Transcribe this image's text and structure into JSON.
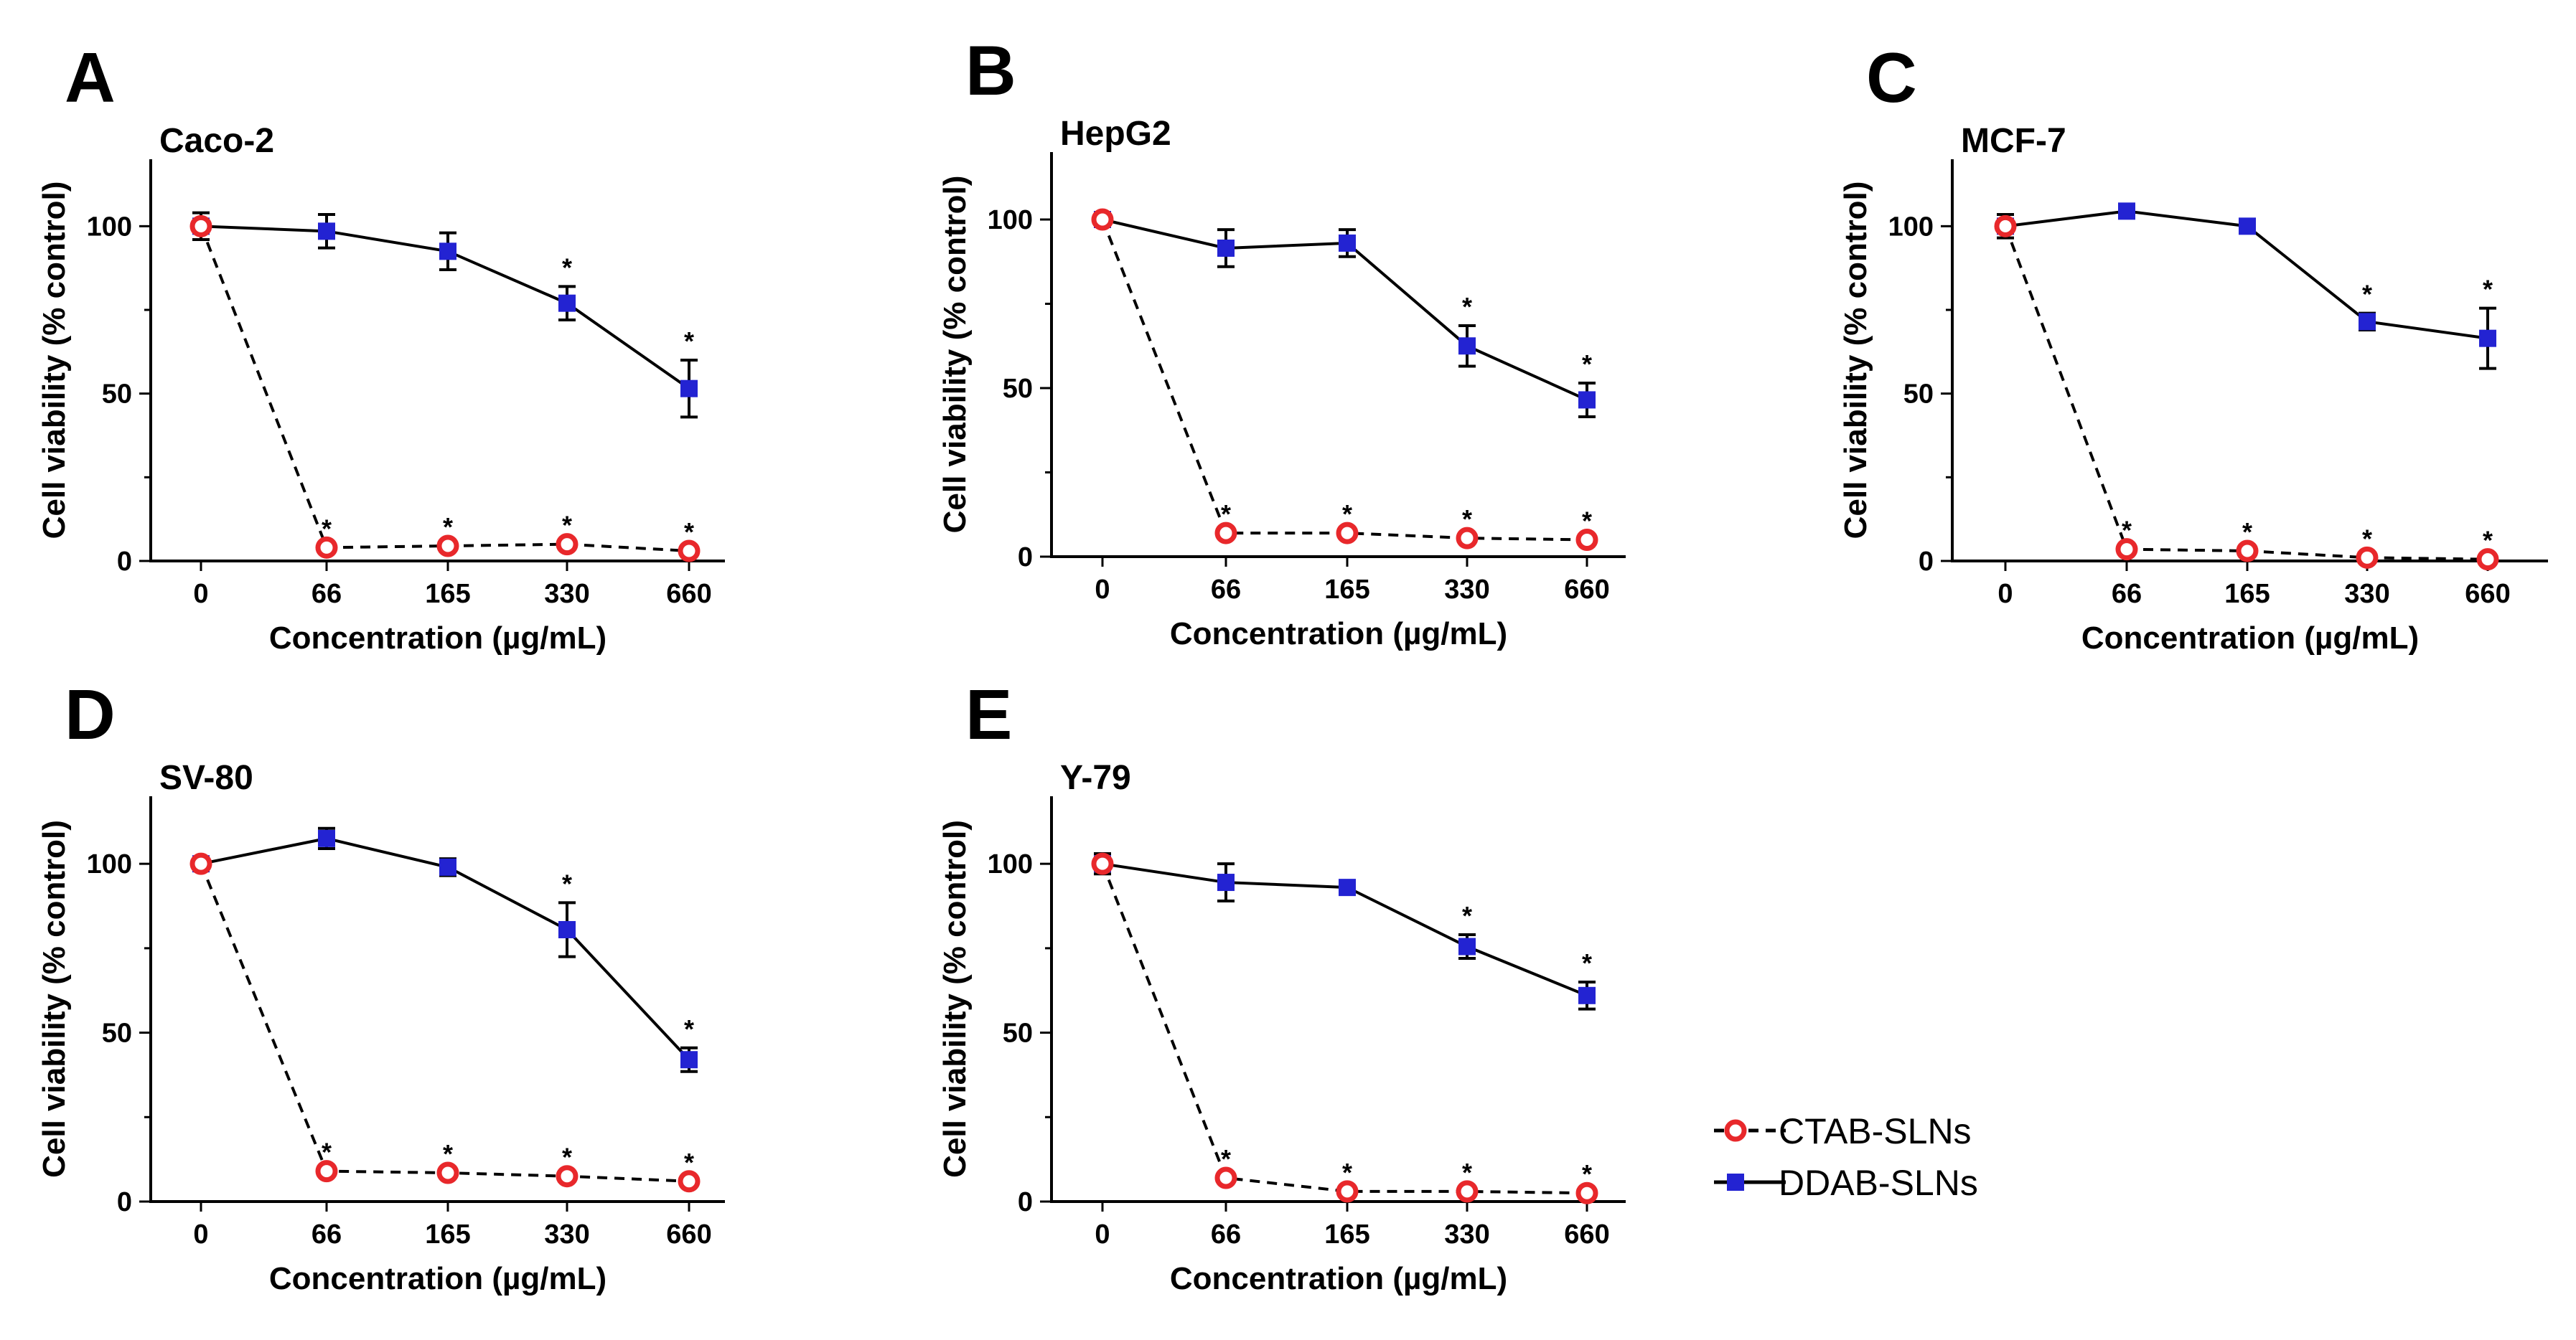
{
  "legend": {
    "ctab_label": "CTAB-SLNs",
    "ddab_label": "DDAB-SLNs"
  },
  "colors": {
    "ctab": "#e8282b",
    "ddab": "#2323d2",
    "line": "#000000"
  },
  "chart_data": [
    {
      "panel": "A",
      "title": "Caco-2",
      "type": "line",
      "categories": [
        "0",
        "66",
        "165",
        "330",
        "660"
      ],
      "xlabel": "Concentration  (µg/mL)",
      "ylabel": "Cell viability (% control)",
      "ylim": [
        0,
        120
      ],
      "yticks": [
        0,
        50,
        100
      ],
      "series": [
        {
          "name": "CTAB-SLNs",
          "values": [
            100,
            4,
            4.5,
            5,
            3
          ],
          "errors": [
            0,
            0,
            0,
            0,
            0
          ],
          "sig": [
            false,
            true,
            true,
            true,
            true
          ]
        },
        {
          "name": "DDAB-SLNs",
          "values": [
            100,
            98.5,
            92.5,
            77,
            51.5
          ],
          "errors": [
            4,
            5,
            5.5,
            5,
            8.5
          ],
          "sig": [
            false,
            false,
            false,
            true,
            true
          ]
        }
      ]
    },
    {
      "panel": "B",
      "title": "HepG2",
      "type": "line",
      "categories": [
        "0",
        "66",
        "165",
        "330",
        "660"
      ],
      "xlabel": "Concentration  (µg/mL)",
      "ylabel": "Cell viability (% control)",
      "ylim": [
        0,
        120
      ],
      "yticks": [
        0,
        50,
        100
      ],
      "series": [
        {
          "name": "CTAB-SLNs",
          "values": [
            100,
            7,
            7,
            5.5,
            5
          ],
          "errors": [
            0,
            0,
            0,
            0,
            0
          ],
          "sig": [
            false,
            true,
            true,
            true,
            true
          ]
        },
        {
          "name": "DDAB-SLNs",
          "values": [
            100,
            91.5,
            93,
            62.5,
            46.5
          ],
          "errors": [
            0,
            5.5,
            4,
            6,
            5
          ],
          "sig": [
            false,
            false,
            false,
            true,
            true
          ]
        }
      ]
    },
    {
      "panel": "C",
      "title": "MCF-7",
      "type": "line",
      "categories": [
        "0",
        "66",
        "165",
        "330",
        "660"
      ],
      "xlabel": "Concentration  (µg/mL)",
      "ylabel": "Cell viability (% control)",
      "ylim": [
        0,
        120
      ],
      "yticks": [
        0,
        50,
        100
      ],
      "series": [
        {
          "name": "CTAB-SLNs",
          "values": [
            100,
            3.5,
            3,
            1,
            0.5
          ],
          "errors": [
            0,
            0,
            0,
            0,
            0
          ],
          "sig": [
            false,
            true,
            true,
            true,
            true
          ]
        },
        {
          "name": "DDAB-SLNs",
          "values": [
            100,
            104.5,
            100,
            71.5,
            66.5
          ],
          "errors": [
            3.5,
            0,
            0,
            2.5,
            9
          ],
          "sig": [
            false,
            false,
            false,
            true,
            true
          ]
        }
      ]
    },
    {
      "panel": "D",
      "title": "SV-80",
      "type": "line",
      "categories": [
        "0",
        "66",
        "165",
        "330",
        "660"
      ],
      "xlabel": "Concentration  (µg/mL)",
      "ylabel": "Cell viability (% control)",
      "ylim": [
        0,
        120
      ],
      "yticks": [
        0,
        50,
        100
      ],
      "series": [
        {
          "name": "CTAB-SLNs",
          "values": [
            100,
            9,
            8.5,
            7.5,
            6
          ],
          "errors": [
            0,
            0,
            0,
            0,
            0
          ],
          "sig": [
            false,
            true,
            true,
            true,
            true
          ]
        },
        {
          "name": "DDAB-SLNs",
          "values": [
            100,
            107.5,
            99,
            80.5,
            42
          ],
          "errors": [
            0,
            3,
            2.5,
            8,
            3.5
          ],
          "sig": [
            false,
            false,
            false,
            true,
            true
          ]
        }
      ]
    },
    {
      "panel": "E",
      "title": "Y-79",
      "type": "line",
      "categories": [
        "0",
        "66",
        "165",
        "330",
        "660"
      ],
      "xlabel": "Concentration  (µg/mL)",
      "ylabel": "Cell viability (% control)",
      "ylim": [
        0,
        120
      ],
      "yticks": [
        0,
        50,
        100
      ],
      "series": [
        {
          "name": "CTAB-SLNs",
          "values": [
            100,
            7,
            3,
            3,
            2.5
          ],
          "errors": [
            0,
            0,
            0,
            0,
            0
          ],
          "sig": [
            false,
            true,
            true,
            true,
            true
          ]
        },
        {
          "name": "DDAB-SLNs",
          "values": [
            100,
            94.5,
            93,
            75.5,
            61
          ],
          "errors": [
            3,
            5.5,
            2,
            3.5,
            4
          ],
          "sig": [
            false,
            false,
            false,
            true,
            true
          ]
        }
      ]
    }
  ]
}
